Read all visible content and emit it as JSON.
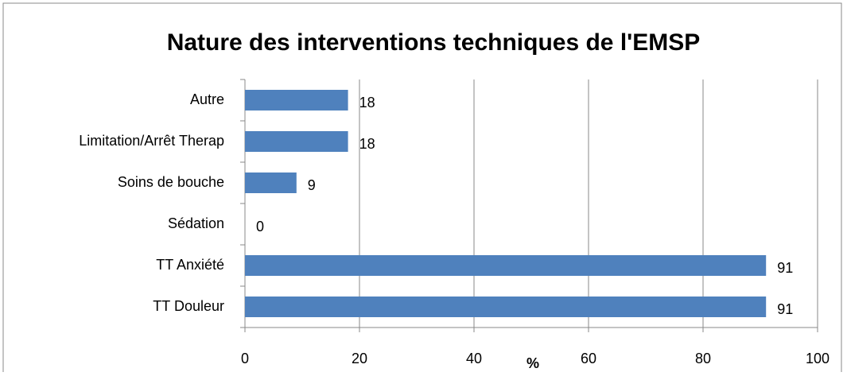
{
  "chart_data": {
    "type": "bar",
    "orientation": "horizontal",
    "title": "Nature des interventions techniques de l'EMSP",
    "categories": [
      "Autre",
      "Limitation/Arrêt Therap",
      "Soins de bouche",
      "Sédation",
      "TT Anxiété",
      "TT Douleur"
    ],
    "values": [
      18,
      18,
      9,
      0,
      91,
      91
    ],
    "color": "#4f81bd",
    "xlabel": "%",
    "xlim": [
      0,
      100
    ],
    "xticks": [
      0,
      20,
      40,
      60,
      80,
      100
    ],
    "grid": true
  }
}
